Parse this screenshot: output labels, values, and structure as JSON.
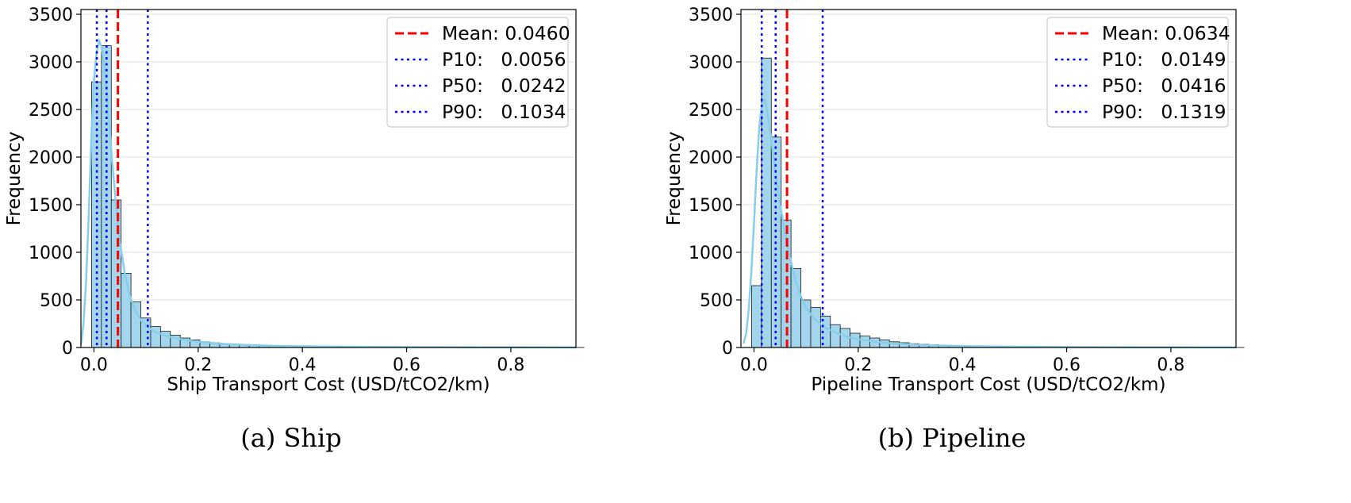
{
  "colors": {
    "bar_fill": "#a3d5ec",
    "bar_edge": "#1a1a1a",
    "kde_line": "#87ceeb",
    "mean_line": "#ff0000",
    "percentile_line": "#0000ff",
    "grid": "#e0e0e0"
  },
  "chart_data": [
    {
      "type": "bar",
      "subtype": "histogram_with_kde",
      "caption": "(a) Ship",
      "xlabel": "Ship Transport Cost (USD/tCO2/km)",
      "ylabel": "Frequency",
      "xlim": [
        -0.025,
        0.925
      ],
      "ylim": [
        0,
        3550
      ],
      "xticks": [
        0.0,
        0.2,
        0.4,
        0.6,
        0.8
      ],
      "xtick_labels": [
        "0.0",
        "0.2",
        "0.4",
        "0.6",
        "0.8"
      ],
      "yticks": [
        0,
        500,
        1000,
        1500,
        2000,
        2500,
        3000,
        3500
      ],
      "ytick_labels": [
        "0",
        "500",
        "1000",
        "1500",
        "2000",
        "2500",
        "3000",
        "3500"
      ],
      "grid": "y",
      "legend_position": "top-right",
      "bins": {
        "start": -0.0045,
        "width": 0.0189,
        "counts": [
          2790,
          3170,
          1550,
          780,
          480,
          310,
          220,
          170,
          130,
          100,
          80,
          60,
          50,
          40,
          30,
          25,
          20,
          18,
          15,
          13,
          12,
          10,
          9,
          8,
          7,
          6,
          5,
          5,
          4,
          4,
          3,
          3,
          3,
          2,
          2,
          2,
          2,
          2,
          1,
          1,
          1,
          1,
          1,
          1,
          1,
          1,
          1,
          1,
          1,
          1
        ]
      },
      "kde": {
        "x": [
          -0.025,
          -0.02,
          -0.015,
          -0.01,
          -0.005,
          0.0,
          0.005,
          0.01,
          0.015,
          0.02,
          0.025,
          0.03,
          0.035,
          0.04,
          0.045,
          0.05,
          0.06,
          0.07,
          0.08,
          0.09,
          0.1,
          0.11,
          0.12,
          0.14,
          0.16,
          0.18,
          0.2,
          0.25,
          0.3,
          0.35,
          0.4,
          0.5,
          0.6,
          0.7,
          0.8,
          0.925
        ],
        "y": [
          30,
          250,
          700,
          1400,
          2200,
          2800,
          3100,
          3220,
          3150,
          2950,
          2650,
          2300,
          1950,
          1650,
          1350,
          1100,
          750,
          520,
          380,
          290,
          230,
          190,
          160,
          120,
          95,
          75,
          60,
          38,
          25,
          17,
          12,
          7,
          5,
          3,
          2,
          1
        ]
      },
      "reference_lines": [
        {
          "name": "Mean",
          "label": "Mean: 0.0460",
          "x": 0.046,
          "style": "dashed"
        },
        {
          "name": "P10",
          "label": "P10:   0.0056",
          "x": 0.0056,
          "style": "dotted"
        },
        {
          "name": "P50",
          "label": "P50:   0.0242",
          "x": 0.0242,
          "style": "dotted"
        },
        {
          "name": "P90",
          "label": "P90:   0.1034",
          "x": 0.1034,
          "style": "dotted"
        }
      ]
    },
    {
      "type": "bar",
      "subtype": "histogram_with_kde",
      "caption": "(b) Pipeline",
      "xlabel": "Pipeline Transport Cost (USD/tCO2/km)",
      "ylabel": "Frequency",
      "xlim": [
        -0.025,
        0.925
      ],
      "ylim": [
        0,
        3550
      ],
      "xticks": [
        0.0,
        0.2,
        0.4,
        0.6,
        0.8
      ],
      "xtick_labels": [
        "0.0",
        "0.2",
        "0.4",
        "0.6",
        "0.8"
      ],
      "yticks": [
        0,
        500,
        1000,
        1500,
        2000,
        2500,
        3000,
        3500
      ],
      "ytick_labels": [
        "0",
        "500",
        "1000",
        "1500",
        "2000",
        "2500",
        "3000",
        "3500"
      ],
      "grid": "y",
      "legend_position": "top-right",
      "bins": {
        "start": -0.0045,
        "width": 0.0189,
        "counts": [
          650,
          3040,
          2210,
          1340,
          830,
          500,
          420,
          330,
          240,
          200,
          150,
          120,
          100,
          80,
          60,
          50,
          40,
          35,
          30,
          25,
          20,
          18,
          15,
          13,
          11,
          10,
          9,
          8,
          7,
          6,
          5,
          5,
          4,
          4,
          3,
          3,
          3,
          2,
          2,
          2,
          2,
          2,
          1,
          1,
          1,
          1,
          1,
          1,
          1,
          1
        ]
      },
      "kde": {
        "x": [
          -0.02,
          -0.015,
          -0.01,
          -0.005,
          0.0,
          0.005,
          0.01,
          0.015,
          0.02,
          0.025,
          0.03,
          0.035,
          0.04,
          0.045,
          0.05,
          0.055,
          0.06,
          0.065,
          0.07,
          0.08,
          0.09,
          0.1,
          0.11,
          0.12,
          0.14,
          0.16,
          0.18,
          0.2,
          0.25,
          0.3,
          0.35,
          0.4,
          0.5,
          0.6,
          0.7,
          0.8,
          0.925
        ],
        "y": [
          40,
          150,
          400,
          800,
          1300,
          1850,
          2300,
          2550,
          2600,
          2500,
          2300,
          2100,
          1900,
          1700,
          1500,
          1350,
          1200,
          1050,
          920,
          700,
          540,
          420,
          340,
          280,
          200,
          150,
          110,
          85,
          50,
          32,
          22,
          15,
          8,
          5,
          3,
          2,
          1
        ]
      },
      "reference_lines": [
        {
          "name": "Mean",
          "label": "Mean: 0.0634",
          "x": 0.0634,
          "style": "dashed"
        },
        {
          "name": "P10",
          "label": "P10:   0.0149",
          "x": 0.0149,
          "style": "dotted"
        },
        {
          "name": "P50",
          "label": "P50:   0.0416",
          "x": 0.0416,
          "style": "dotted"
        },
        {
          "name": "P90",
          "label": "P90:   0.1319",
          "x": 0.1319,
          "style": "dotted"
        }
      ]
    }
  ]
}
